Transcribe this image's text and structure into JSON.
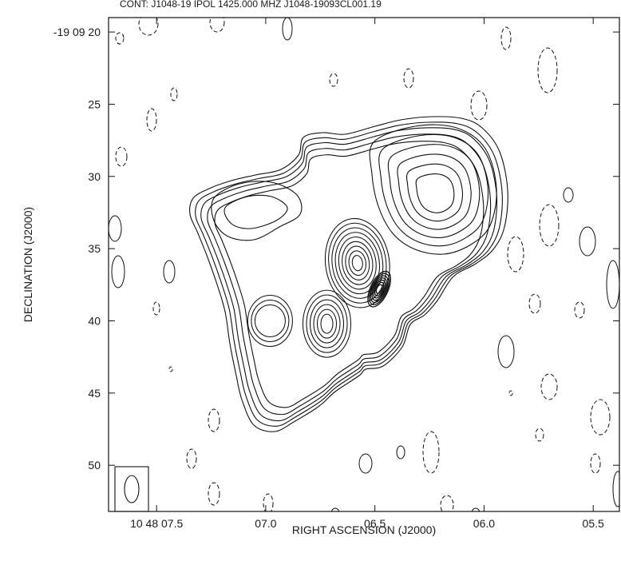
{
  "chart_data": {
    "type": "contour",
    "title": "CONT: J1048-19  IPOL  1425.000 MHZ  J1048-19093CL001.19",
    "xlabel": "RIGHT ASCENSION (J2000)",
    "ylabel": "DECLINATION (J2000)",
    "x_axis": {
      "units": "seconds of RA (10h 48m)",
      "range": [
        7.72,
        5.38
      ],
      "reversed": true,
      "ticks": [
        {
          "value": 7.5,
          "label": "10 48 07.5"
        },
        {
          "value": 7.0,
          "label": "07.0"
        },
        {
          "value": 6.5,
          "label": "06.5"
        },
        {
          "value": 6.0,
          "label": "06.0"
        },
        {
          "value": 5.5,
          "label": "05.5"
        }
      ]
    },
    "y_axis": {
      "units": "arcsec of declination below -19 09 00",
      "range": [
        53.2,
        19.0
      ],
      "ticks": [
        {
          "value": 20,
          "label": "-19 09 20"
        },
        {
          "value": 25,
          "label": "25"
        },
        {
          "value": 30,
          "label": "30"
        },
        {
          "value": 35,
          "label": "35"
        },
        {
          "value": 40,
          "label": "40"
        },
        {
          "value": 45,
          "label": "45"
        },
        {
          "value": 50,
          "label": "50"
        }
      ]
    },
    "positive_levels": 13,
    "negative_levels": "dashed",
    "features": [
      {
        "name": "north-west-lobe-peak",
        "ra_s": 6.2,
        "dec_arcsec": 32
      },
      {
        "name": "inner-knot",
        "ra_s": 6.58,
        "dec_arcsec": 36
      },
      {
        "name": "core",
        "ra_s": 6.48,
        "dec_arcsec": 37.8
      },
      {
        "name": "south-knot-a",
        "ra_s": 6.72,
        "dec_arcsec": 40.2
      },
      {
        "name": "south-knot-b",
        "ra_s": 6.98,
        "dec_arcsec": 40
      }
    ],
    "beam": {
      "corner": "bottom-left",
      "shape": "ellipse",
      "orientation": "north-south"
    },
    "grid": false,
    "legend": "none",
    "footer_text": ""
  }
}
